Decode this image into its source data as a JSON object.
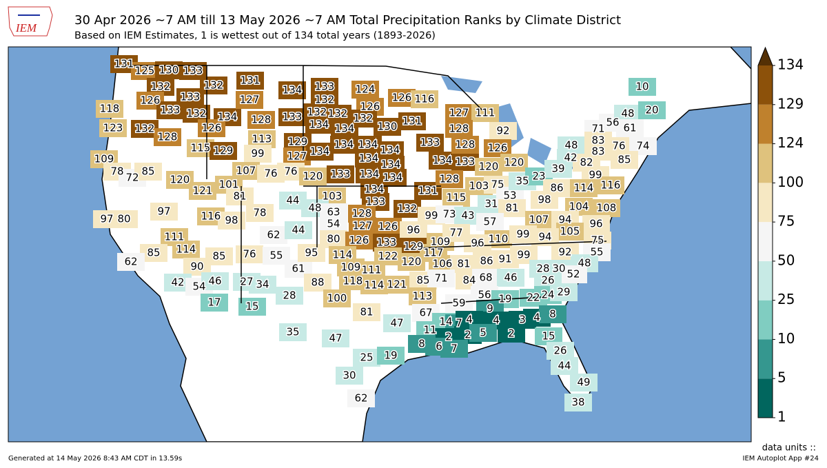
{
  "header": {
    "logo": "IEM",
    "title": "30 Apr 2026 ~7 AM till 13 May 2026 ~7 AM Total Precipitation Ranks by Climate District",
    "subtitle": "Based on IEM Estimates, 1 is wettest out of 134 total years (1893-2026)"
  },
  "colorbar": {
    "ticks": [
      1,
      5,
      10,
      25,
      50,
      75,
      100,
      124,
      129,
      134
    ],
    "colors": [
      "#01665e",
      "#35978f",
      "#80cdc1",
      "#c7eae5",
      "#f5f5f5",
      "#f6e8c3",
      "#dfc27d",
      "#bf812d",
      "#8c510a"
    ],
    "extend_color": "#543005",
    "units": "data units ::"
  },
  "map": {
    "ranks": [
      131,
      125,
      130,
      133,
      132,
      133,
      126,
      133,
      132,
      134,
      126,
      132,
      131,
      127,
      128,
      134,
      133,
      132,
      124,
      126,
      116,
      126,
      132,
      133,
      132,
      132,
      130,
      131,
      127,
      111,
      118,
      123,
      132,
      128,
      115,
      129,
      113,
      99,
      129,
      127,
      134,
      134,
      134,
      134,
      134,
      134,
      134,
      134,
      134,
      134,
      133,
      133,
      128,
      128,
      92,
      126,
      120,
      120,
      109,
      78,
      72,
      85,
      120,
      107,
      76,
      76,
      120,
      133,
      134,
      121,
      101,
      81,
      97,
      97,
      80,
      116,
      98,
      78,
      62,
      44,
      44,
      103,
      48,
      63,
      54,
      80,
      134,
      133,
      128,
      127,
      126,
      126,
      133,
      132,
      131,
      128,
      115,
      99,
      73,
      43,
      96,
      129,
      109,
      77,
      103,
      75,
      31,
      53,
      81,
      57,
      35,
      23,
      39,
      42,
      48,
      71,
      83,
      83,
      56,
      48,
      61,
      20,
      10,
      76,
      74,
      82,
      85,
      99,
      116,
      86,
      114,
      98,
      104,
      108,
      107,
      94,
      96,
      105,
      110,
      99,
      94,
      96,
      75,
      55,
      92,
      48,
      111,
      85,
      114,
      90,
      85,
      76,
      55,
      61,
      62,
      42,
      54,
      46,
      17,
      27,
      34,
      28,
      15,
      95,
      114,
      122,
      117,
      120,
      109,
      111,
      106,
      81,
      86,
      91,
      99,
      118,
      114,
      121,
      85,
      71,
      84,
      68,
      46,
      28,
      30,
      52,
      26,
      88,
      100,
      113,
      56,
      19,
      22,
      24,
      29,
      59,
      9,
      67,
      81,
      47,
      14,
      7,
      4,
      4,
      3,
      4,
      8,
      11,
      2,
      2,
      5,
      2,
      15,
      8,
      6,
      7,
      35,
      47,
      26,
      25,
      19,
      44,
      30,
      49,
      62,
      38
    ]
  },
  "footer": {
    "left": "Generated at 14 May 2026 8:43 AM CDT in 13.59s",
    "right": "IEM Autoplot App #24"
  }
}
